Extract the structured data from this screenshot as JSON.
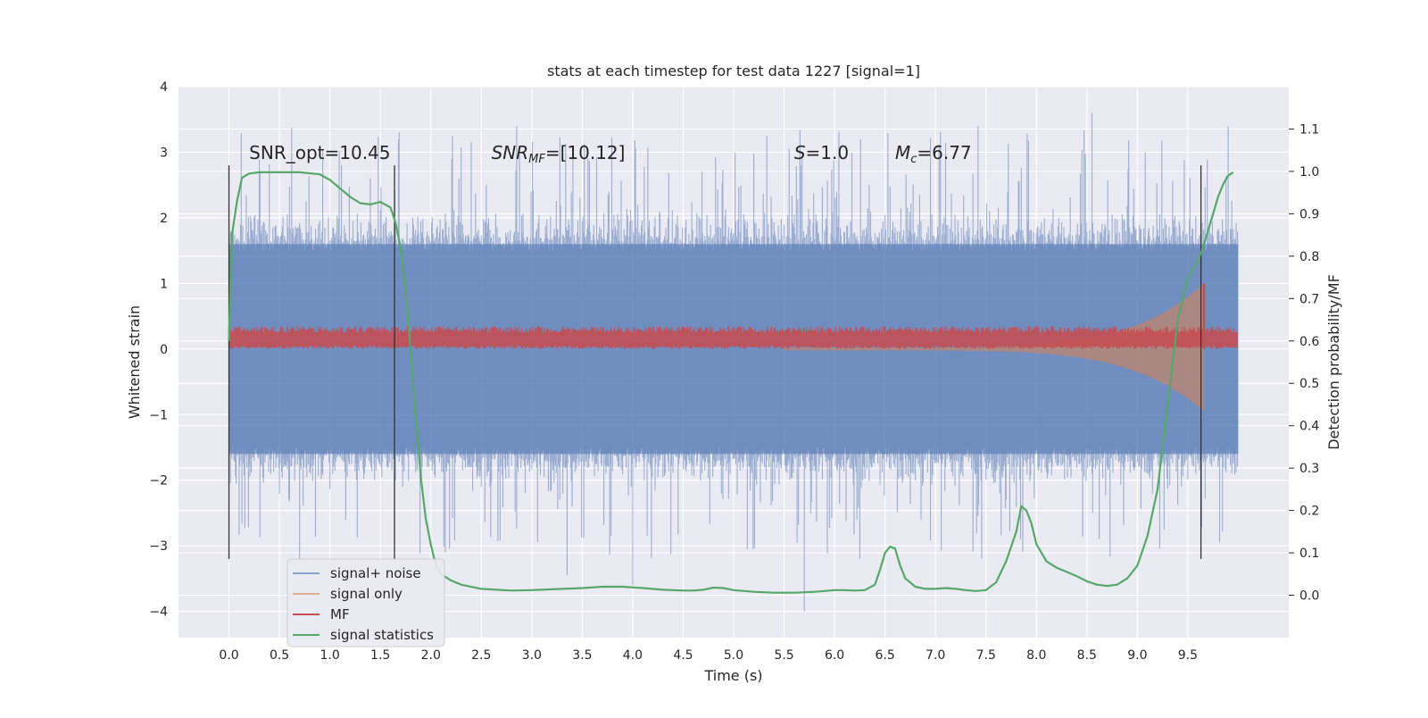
{
  "chart_data": {
    "type": "line",
    "title": "stats at each timestep for test data 1227 [signal=1]",
    "xlabel": "Time (s)",
    "ylabel": "Whitened strain",
    "y2label": "Detection probability/MF",
    "xlim": [
      -0.5,
      10.5
    ],
    "ylim": [
      -4.4,
      4.0
    ],
    "y2lim": [
      -0.1,
      1.2
    ],
    "xticks": [
      "0.0",
      "0.5",
      "1.0",
      "1.5",
      "2.0",
      "2.5",
      "3.0",
      "3.5",
      "4.0",
      "4.5",
      "5.0",
      "5.5",
      "6.0",
      "6.5",
      "7.0",
      "7.5",
      "8.0",
      "8.5",
      "9.0",
      "9.5"
    ],
    "yticks": [
      "−4",
      "−3",
      "−2",
      "−1",
      "0",
      "1",
      "2",
      "3",
      "4"
    ],
    "y2ticks": [
      "0.0",
      "0.1",
      "0.2",
      "0.3",
      "0.4",
      "0.5",
      "0.6",
      "0.7",
      "0.8",
      "0.9",
      "1.0",
      "1.1"
    ],
    "grid": true,
    "legend_placement": "lower-left",
    "annotations": [
      {
        "text": "SNR_opt=10.45",
        "x": 0.2,
        "y": 2.9
      },
      {
        "text": "SNR",
        "sub": "MF",
        "rest": "=[10.12]",
        "x": 2.6,
        "y": 2.9
      },
      {
        "text": "S",
        "rest": "=1.0",
        "x": 5.6,
        "y": 2.9
      },
      {
        "text": "M",
        "sub": "c",
        "rest": "=6.77",
        "x": 6.6,
        "y": 2.9
      }
    ],
    "vlines": [
      0.0,
      1.64,
      9.63
    ],
    "vline_range": [
      -3.2,
      2.8
    ],
    "series": [
      {
        "name": "signal+ noise",
        "color": "#4c72b0",
        "kind": "noise",
        "x_range": [
          0,
          10
        ],
        "envelope_low": -2.0,
        "envelope_high": 2.0,
        "spike_extremes": [
          3.6,
          -4.0
        ]
      },
      {
        "name": "signal only",
        "color": "#dd8452",
        "kind": "chirp",
        "x_range": [
          5.5,
          9.66
        ],
        "amplitude_start": 0.02,
        "amplitude_end": 1.0
      },
      {
        "name": "MF",
        "color": "#c44e52",
        "kind": "band",
        "x_range": [
          0,
          10
        ],
        "band": [
          0.0,
          0.35
        ],
        "peak": {
          "x": 9.66,
          "y": 1.0
        }
      },
      {
        "name": "signal statistics",
        "color": "#55a868",
        "kind": "line",
        "axis": "right",
        "x": [
          0.0,
          0.03,
          0.08,
          0.13,
          0.2,
          0.3,
          0.5,
          0.7,
          0.9,
          1.0,
          1.1,
          1.2,
          1.3,
          1.4,
          1.5,
          1.6,
          1.65,
          1.7,
          1.75,
          1.8,
          1.85,
          1.9,
          1.95,
          2.0,
          2.05,
          2.1,
          2.2,
          2.3,
          2.5,
          2.8,
          3.0,
          3.3,
          3.5,
          3.7,
          3.9,
          4.1,
          4.3,
          4.5,
          4.6,
          4.7,
          4.8,
          4.9,
          5.0,
          5.2,
          5.4,
          5.6,
          5.8,
          5.9,
          6.0,
          6.1,
          6.2,
          6.3,
          6.4,
          6.45,
          6.5,
          6.55,
          6.6,
          6.65,
          6.7,
          6.8,
          6.9,
          7.0,
          7.1,
          7.2,
          7.3,
          7.4,
          7.5,
          7.6,
          7.7,
          7.8,
          7.85,
          7.9,
          7.95,
          8.0,
          8.1,
          8.2,
          8.3,
          8.4,
          8.5,
          8.6,
          8.7,
          8.8,
          8.9,
          9.0,
          9.1,
          9.2,
          9.3,
          9.4,
          9.5,
          9.6,
          9.65,
          9.7,
          9.75,
          9.8,
          9.85,
          9.9,
          9.95
        ],
        "y": [
          0.6,
          0.85,
          0.93,
          0.985,
          0.995,
          0.998,
          0.998,
          0.998,
          0.993,
          0.98,
          0.96,
          0.94,
          0.925,
          0.922,
          0.928,
          0.915,
          0.88,
          0.82,
          0.72,
          0.58,
          0.42,
          0.28,
          0.18,
          0.12,
          0.07,
          0.05,
          0.035,
          0.025,
          0.015,
          0.011,
          0.012,
          0.015,
          0.017,
          0.02,
          0.02,
          0.017,
          0.013,
          0.011,
          0.011,
          0.013,
          0.018,
          0.017,
          0.012,
          0.008,
          0.006,
          0.006,
          0.008,
          0.01,
          0.012,
          0.012,
          0.011,
          0.012,
          0.025,
          0.06,
          0.1,
          0.115,
          0.11,
          0.07,
          0.04,
          0.02,
          0.015,
          0.015,
          0.017,
          0.015,
          0.012,
          0.01,
          0.012,
          0.03,
          0.08,
          0.15,
          0.21,
          0.2,
          0.17,
          0.12,
          0.08,
          0.065,
          0.055,
          0.045,
          0.033,
          0.025,
          0.022,
          0.025,
          0.04,
          0.07,
          0.14,
          0.25,
          0.45,
          0.65,
          0.75,
          0.79,
          0.82,
          0.86,
          0.9,
          0.94,
          0.97,
          0.99,
          0.998
        ]
      }
    ]
  }
}
